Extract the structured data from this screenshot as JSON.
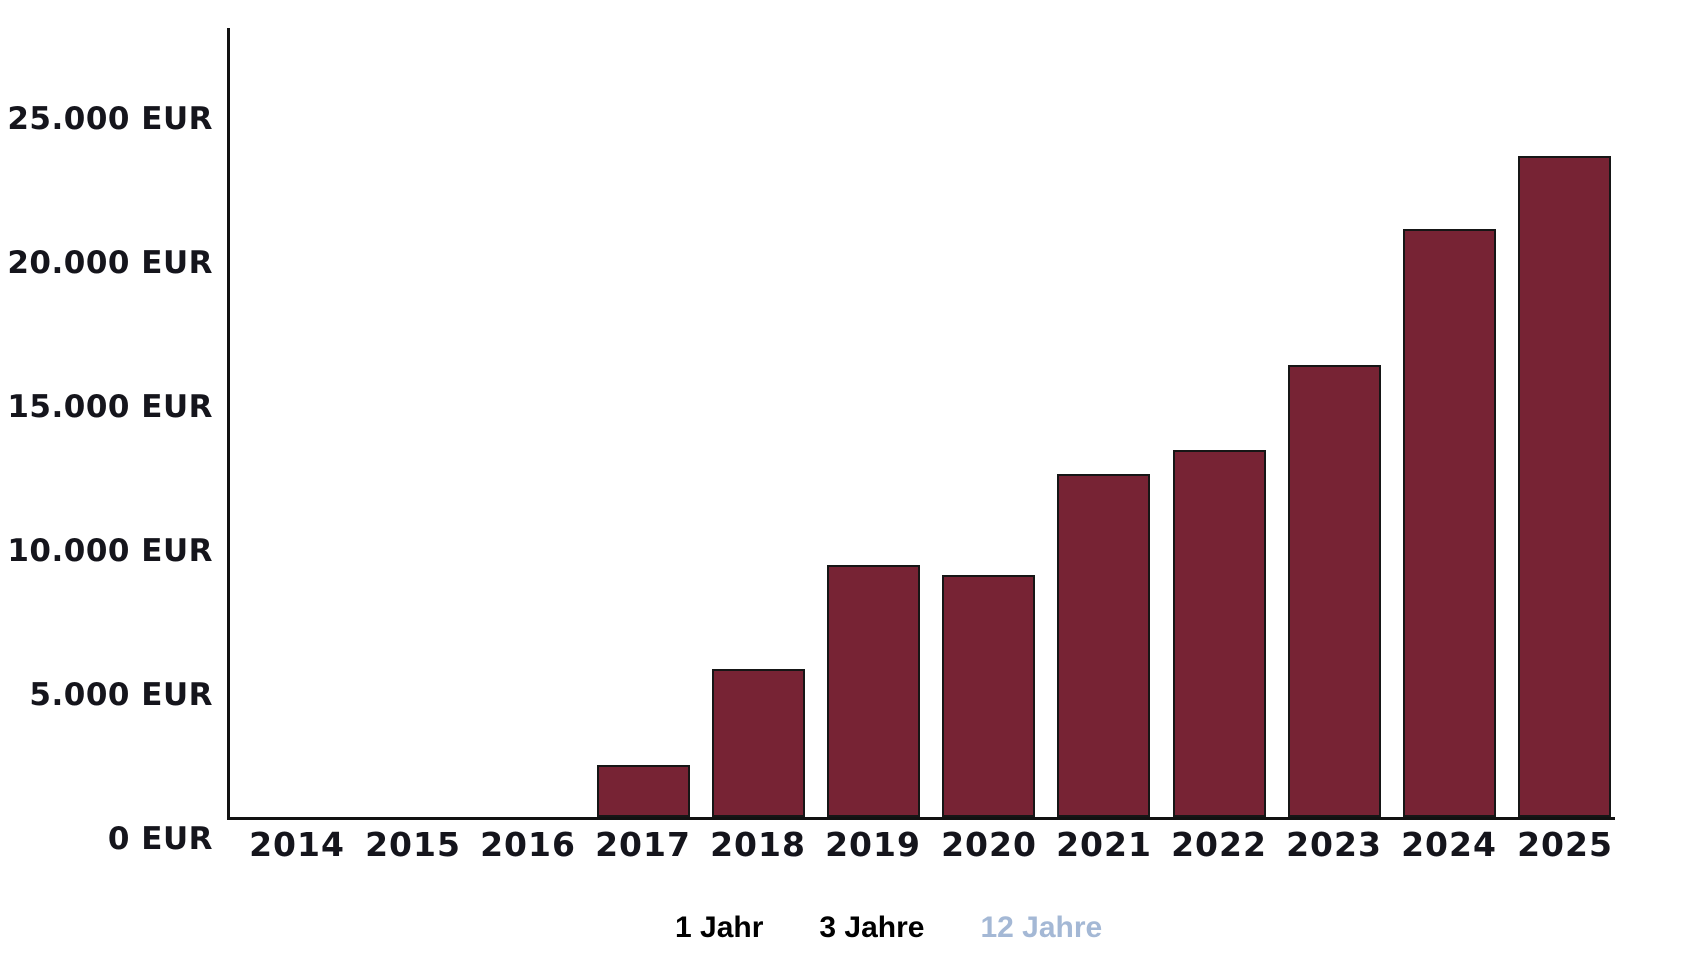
{
  "chart_data": {
    "type": "bar",
    "title": "",
    "categories": [
      "2014",
      "2015",
      "2016",
      "2017",
      "2018",
      "2019",
      "2020",
      "2021",
      "2022",
      "2023",
      "2024",
      "2025"
    ],
    "values": [
      0,
      0,
      0,
      1800,
      5150,
      8750,
      8400,
      11900,
      12750,
      15700,
      20400,
      22950
    ],
    "unit": "EUR",
    "xlabel": "",
    "ylabel": "",
    "ylim": [
      0,
      27500
    ],
    "y_tick_step": 5000,
    "y_tick_labels": [
      "0 EUR",
      "5.000 EUR",
      "10.000 EUR",
      "15.000 EUR",
      "20.000 EUR",
      "25.000 EUR"
    ],
    "grid": false,
    "legend_position": "none",
    "bar_color": "#772334",
    "bar_border_color": "#161616",
    "axis_color": "#121212",
    "tick_label_color": "#15151c"
  },
  "period_selector": {
    "options": [
      {
        "label": "1 Jahr",
        "selected": false
      },
      {
        "label": "3 Jahre",
        "selected": false
      },
      {
        "label": "12 Jahre",
        "selected": true
      }
    ],
    "selected_color": "#a4b8d5",
    "unselected_color": "#000000"
  }
}
